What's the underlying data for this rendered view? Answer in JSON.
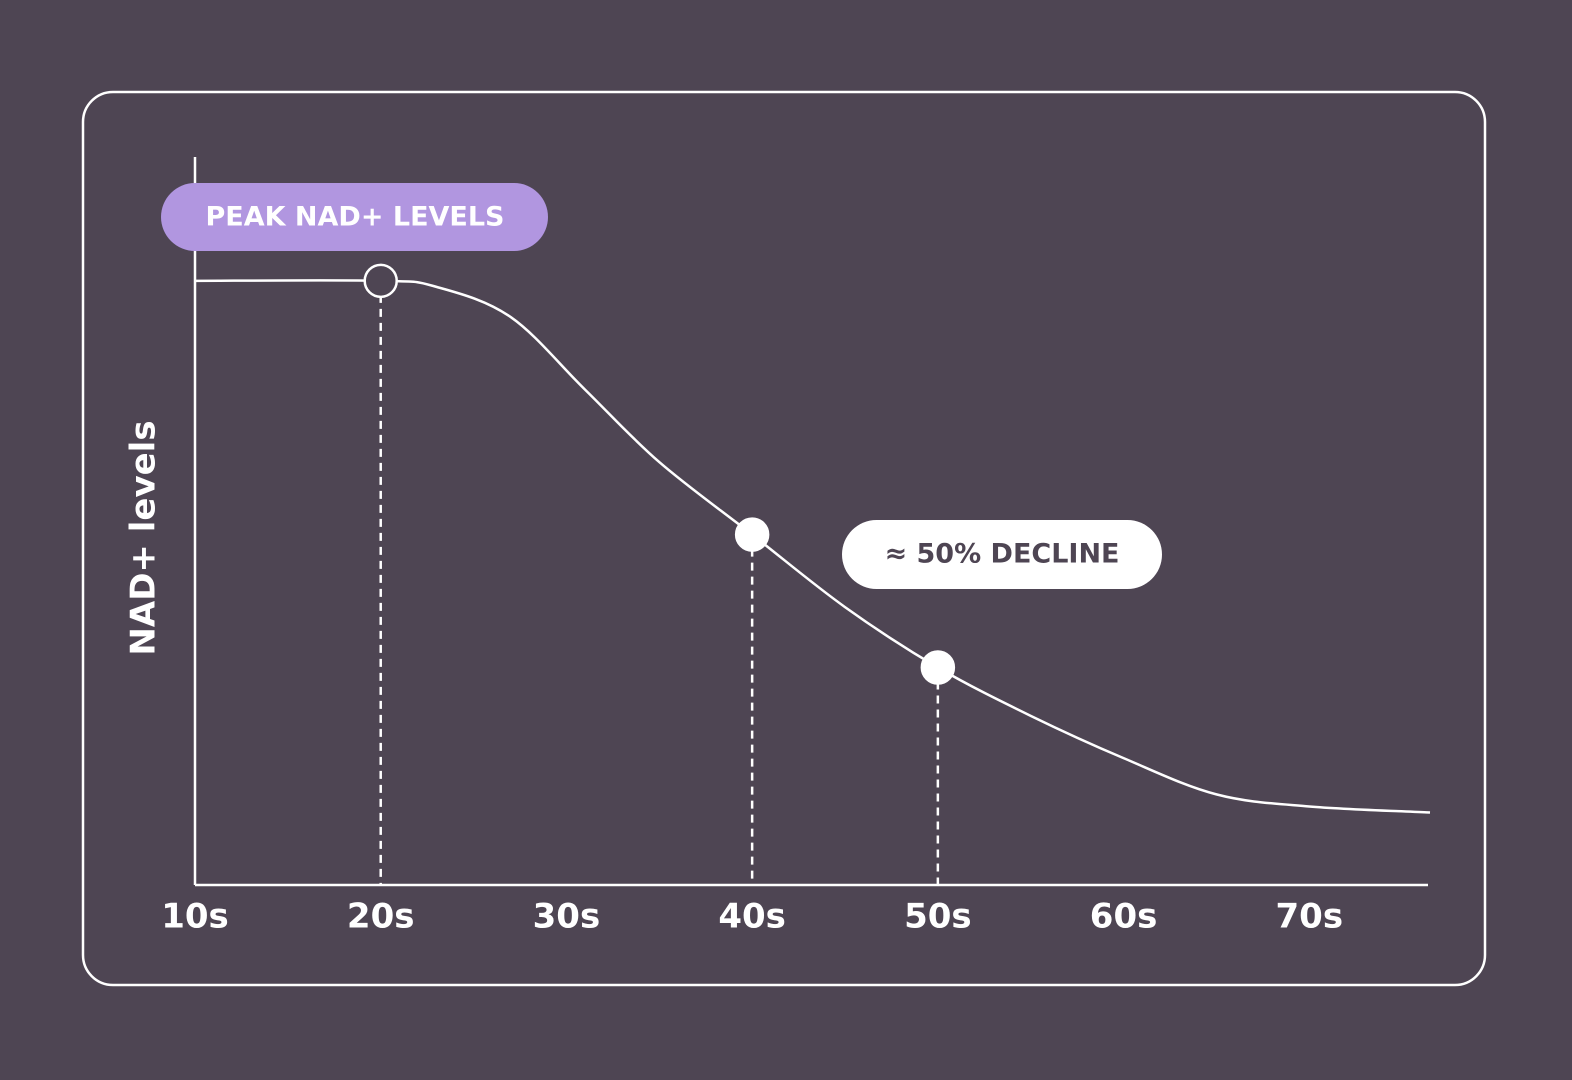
{
  "chart_data": {
    "type": "line",
    "y_label": "NAD+ levels",
    "xlim": [
      10,
      76.5
    ],
    "ylim": [
      0,
      120
    ],
    "xticks": [
      {
        "value": 10,
        "label": "10s"
      },
      {
        "value": 20,
        "label": "20s"
      },
      {
        "value": 30,
        "label": "30s"
      },
      {
        "value": 40,
        "label": "40s"
      },
      {
        "value": 50,
        "label": "50s"
      },
      {
        "value": 60,
        "label": "60s"
      },
      {
        "value": 70,
        "label": "70s"
      }
    ],
    "series": [
      {
        "color": "#ffffff",
        "x": [
          10,
          20,
          23,
          27,
          31,
          35,
          40,
          45,
          50,
          55,
          60,
          65,
          70,
          76.5
        ],
        "values": [
          100,
          100,
          99,
          94,
          82,
          70,
          58,
          46,
          36,
          28,
          21,
          15,
          13,
          12
        ]
      }
    ],
    "markers": [
      {
        "x": 20,
        "y": 100,
        "filled": false
      },
      {
        "x": 40,
        "y": 58,
        "filled": true
      },
      {
        "x": 50,
        "y": 36,
        "filled": true
      }
    ],
    "annotations": [
      "PEAK NAD+ LEVELS",
      "≈ 50% DECLINE"
    ]
  }
}
